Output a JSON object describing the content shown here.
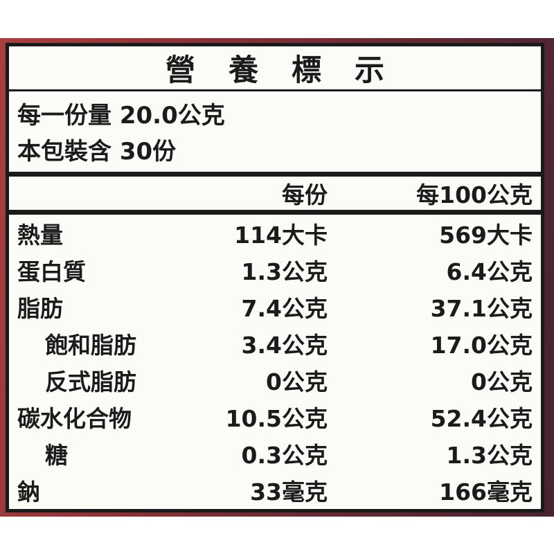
{
  "label": {
    "title": "營養標示",
    "serving_info": {
      "per_serving_line": "每一份量 20.0公克",
      "servings_per_pack_line": "本包裝含 30份"
    },
    "table": {
      "columns": {
        "per_serving": "每份",
        "per_100g": "每100公克"
      },
      "rows": [
        {
          "label": "熱量",
          "indent": false,
          "per_serving": "114大卡",
          "per_100g": "569大卡"
        },
        {
          "label": "蛋白質",
          "indent": false,
          "per_serving": "1.3公克",
          "per_100g": "6.4公克"
        },
        {
          "label": "脂肪",
          "indent": false,
          "per_serving": "7.4公克",
          "per_100g": "37.1公克"
        },
        {
          "label": "飽和脂肪",
          "indent": true,
          "per_serving": "3.4公克",
          "per_100g": "17.0公克"
        },
        {
          "label": "反式脂肪",
          "indent": true,
          "per_serving": "0公克",
          "per_100g": "0公克"
        },
        {
          "label": "碳水化合物",
          "indent": false,
          "per_serving": "10.5公克",
          "per_100g": "52.4公克"
        },
        {
          "label": "糖",
          "indent": true,
          "per_serving": "0.3公克",
          "per_100g": "1.3公克"
        },
        {
          "label": "鈉",
          "indent": false,
          "per_serving": "33毫克",
          "per_100g": "166毫克"
        }
      ]
    }
  },
  "colors": {
    "page_background": "#ffffff",
    "frame_maroon_left": "#a83f3f",
    "frame_maroon_right": "#472332",
    "panel_background": "#fbfbf8",
    "border_black": "#1a1a1a",
    "text": "#1b1b1b"
  }
}
